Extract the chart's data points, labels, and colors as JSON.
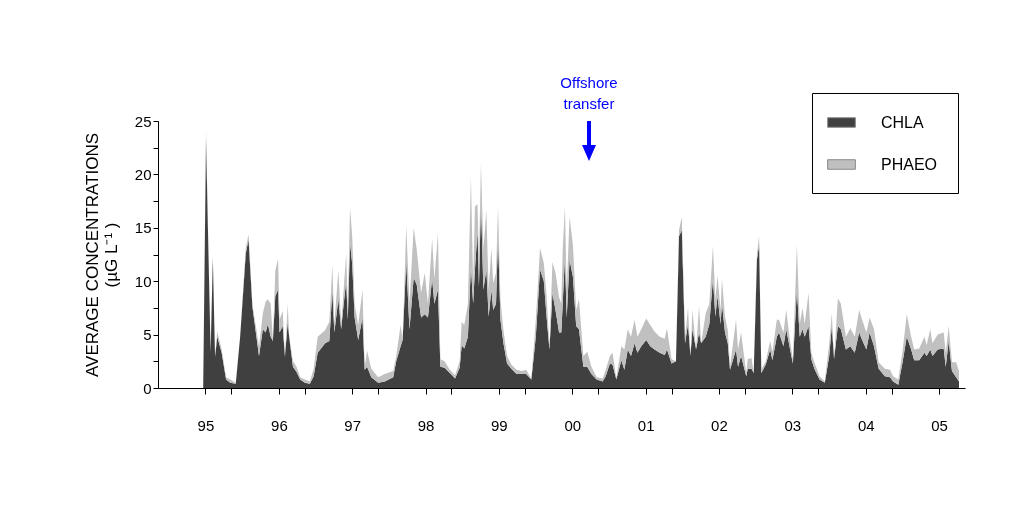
{
  "chart_data": {
    "type": "area",
    "stacked": true,
    "ylabel": "AVERAGE CONCENTRATIONS\n(µG L⁻¹ )",
    "legend": "top right",
    "xlim": [
      "1995",
      "2006"
    ],
    "xticks": [
      {
        "value": "1995-08-25",
        "label": "95"
      },
      {
        "value": "1996",
        "label": null
      },
      {
        "value": "1996-08-25",
        "label": "96"
      },
      {
        "value": "1997",
        "label": null
      },
      {
        "value": "1997-08-25",
        "label": "97"
      },
      {
        "value": "1998",
        "label": null
      },
      {
        "value": "1998-08-25",
        "label": "98"
      },
      {
        "value": "1999",
        "label": null
      },
      {
        "value": "1999-08-25",
        "label": "99"
      },
      {
        "value": "2000",
        "label": null
      },
      {
        "value": "2000-08-25",
        "label": "00"
      },
      {
        "value": "2001",
        "label": null
      },
      {
        "value": "2001-08-25",
        "label": "01"
      },
      {
        "value": "2002",
        "label": null
      },
      {
        "value": "2002-08-25",
        "label": "02"
      },
      {
        "value": "2003",
        "label": null
      },
      {
        "value": "2003-08-25",
        "label": "03"
      },
      {
        "value": "2004",
        "label": null
      },
      {
        "value": "2004-08-25",
        "label": "04"
      },
      {
        "value": "2005",
        "label": null
      },
      {
        "value": "2005-08-25",
        "label": "05"
      }
    ],
    "ylim": [
      0,
      25
    ],
    "yticks": [
      0,
      {
        "value": 2.5,
        "label": null
      },
      5,
      {
        "value": 7.5,
        "label": null
      },
      10,
      {
        "value": 12.5,
        "label": null
      },
      15,
      {
        "value": 17.5,
        "label": null
      },
      20,
      {
        "value": 22.5,
        "label": null
      },
      25
    ],
    "annotations": [
      "Offshore transfer"
    ],
    "x": [
      "1995-08-14",
      "1995-08-28",
      "1995-09-20",
      "1995-10-01",
      "1995-10-12",
      "1995-10-23",
      "1995-11-14",
      "1995-12-06",
      "1995-12-27",
      "1996-01-23",
      "1996-02-14",
      "1996-03-13",
      "1996-03-27",
      "1996-04-15",
      "1996-05-18",
      "1996-06-06",
      "1996-06-20",
      "1996-07-01",
      "1996-07-15",
      "1996-07-26",
      "1996-08-07",
      "1996-08-21",
      "1996-08-28",
      "1996-09-13",
      "1996-09-24",
      "1996-10-08",
      "1996-10-15",
      "1996-11-03",
      "1996-11-21",
      "1996-12-09",
      "1997-01-01",
      "1997-01-26",
      "1997-02-14",
      "1997-03-06",
      "1997-04-12",
      "1997-05-03",
      "1997-05-18",
      "1997-05-28",
      "1997-06-17",
      "1997-07-01",
      "1997-07-12",
      "1997-07-26",
      "1997-08-03",
      "1997-08-14",
      "1997-08-25",
      "1997-09-06",
      "1997-09-24",
      "1997-10-15",
      "1997-10-26",
      "1997-11-07",
      "1997-11-28",
      "1998-01-01",
      "1998-02-03",
      "1998-03-17",
      "1998-04-01",
      "1998-04-23",
      "1998-05-03",
      "1998-05-21",
      "1998-06-06",
      "1998-06-27",
      "1998-07-12",
      "1998-08-03",
      "1998-08-21",
      "1998-09-06",
      "1998-09-27",
      "1998-10-08",
      "1998-10-26",
      "1998-11-07",
      "1998-11-28",
      "1998-12-24",
      "1999-01-19",
      "1999-02-11",
      "1999-02-21",
      "1999-03-06",
      "1999-03-24",
      "1999-04-08",
      "1999-04-19",
      "1999-04-28",
      "1999-05-11",
      "1999-05-18",
      "1999-05-28",
      "1999-06-09",
      "1999-06-24",
      "1999-07-05",
      "1999-07-19",
      "1999-07-28",
      "1999-08-11",
      "1999-08-21",
      "1999-09-02",
      "1999-09-17",
      "1999-10-05",
      "1999-10-26",
      "1999-11-21",
      "1999-12-17",
      "2000-01-08",
      "2000-02-03",
      "2000-02-25",
      "2000-03-17",
      "2000-04-05",
      "2000-04-19",
      "2000-05-03",
      "2000-05-18",
      "2000-06-02",
      "2000-06-20",
      "2000-07-01",
      "2000-07-08",
      "2000-07-19",
      "2000-07-28",
      "2000-08-11",
      "2000-08-28",
      "2000-09-13",
      "2000-09-27",
      "2000-10-19",
      "2000-11-07",
      "2000-11-28",
      "2000-12-24",
      "2001-01-23",
      "2001-02-07",
      "2001-02-28",
      "2001-03-13",
      "2001-04-01",
      "2001-04-26",
      "2001-05-11",
      "2001-05-28",
      "2001-06-13",
      "2001-07-01",
      "2001-07-15",
      "2001-08-03",
      "2001-08-28",
      "2001-09-17",
      "2001-10-08",
      "2001-11-03",
      "2001-11-28",
      "2001-12-09",
      "2002-01-01",
      "2002-01-23",
      "2002-02-07",
      "2002-02-21",
      "2002-03-09",
      "2002-03-24",
      "2002-04-05",
      "2002-04-15",
      "2002-05-03",
      "2002-05-18",
      "2002-05-28",
      "2002-06-20",
      "2002-07-08",
      "2002-07-26",
      "2002-08-07",
      "2002-08-18",
      "2002-09-02",
      "2002-09-09",
      "2002-09-24",
      "2002-10-08",
      "2002-10-19",
      "2002-11-18",
      "2002-11-28",
      "2002-12-13",
      "2003-01-08",
      "2003-01-15",
      "2003-02-03",
      "2003-02-14",
      "2003-03-02",
      "2003-03-13",
      "2003-03-24",
      "2003-04-15",
      "2003-05-07",
      "2003-05-18",
      "2003-06-09",
      "2003-06-20",
      "2003-07-12",
      "2003-07-26",
      "2003-08-11",
      "2003-08-28",
      "2003-09-17",
      "2003-10-01",
      "2003-10-15",
      "2003-10-26",
      "2003-11-14",
      "2003-11-28",
      "2003-12-13",
      "2004-01-08",
      "2004-02-03",
      "2004-02-25",
      "2004-03-09",
      "2004-03-20",
      "2004-04-08",
      "2004-04-23",
      "2004-05-18",
      "2004-06-09",
      "2004-07-01",
      "2004-07-23",
      "2004-08-07",
      "2004-08-28",
      "2004-09-13",
      "2004-10-05",
      "2004-10-28",
      "2004-11-28",
      "2004-12-24",
      "2005-01-08",
      "2005-02-03",
      "2005-02-25",
      "2005-03-17",
      "2005-04-08",
      "2005-04-23",
      "2005-05-18",
      "2005-06-13",
      "2005-06-24",
      "2005-07-12",
      "2005-07-23",
      "2005-08-18",
      "2005-09-17",
      "2005-09-27",
      "2005-10-12",
      "2005-10-28",
      "2005-11-18",
      "2005-12-02"
    ],
    "series": [
      {
        "name": "CHLA",
        "color": "#404040",
        "values": [
          0,
          23.4,
          3.3,
          12.2,
          2.9,
          4.8,
          3.3,
          0.8,
          0.5,
          0.4,
          4.8,
          12.6,
          13.9,
          7.6,
          3.0,
          5.5,
          5.2,
          6.0,
          4.8,
          4.4,
          8.6,
          9.2,
          5.2,
          5.8,
          2.9,
          6.2,
          4.8,
          2.0,
          1.5,
          0.8,
          0.5,
          0.4,
          1.1,
          3.3,
          4.2,
          4.4,
          9.1,
          5.2,
          8.3,
          5.5,
          7.6,
          10.0,
          6.4,
          13.6,
          11.6,
          6.6,
          4.5,
          6.6,
          1.7,
          2.0,
          1.0,
          0.5,
          0.6,
          1.0,
          2.5,
          3.9,
          4.5,
          11.9,
          5.5,
          10.3,
          9.7,
          6.6,
          6.9,
          6.6,
          10.2,
          7.9,
          9.2,
          2.0,
          1.9,
          1.4,
          0.9,
          1.9,
          4.0,
          3.7,
          4.8,
          11.4,
          7.9,
          11.1,
          14.7,
          9.5,
          17.5,
          9.2,
          11.1,
          6.7,
          9.2,
          7.3,
          7.9,
          14.2,
          6.4,
          4.2,
          2.3,
          1.8,
          1.3,
          1.3,
          1.3,
          0.8,
          4.8,
          11.1,
          10.0,
          6.6,
          3.6,
          8.9,
          7.3,
          5.2,
          5.2,
          7.9,
          12.3,
          6.6,
          12.0,
          10.4,
          5.8,
          5.5,
          2.0,
          2.0,
          1.3,
          0.8,
          0.6,
          1.1,
          2.3,
          2.2,
          0.8,
          2.6,
          1.7,
          3.6,
          3.0,
          4.2,
          3.3,
          3.9,
          4.5,
          3.9,
          3.6,
          3.3,
          3.1,
          3.6,
          2.3,
          2.5,
          14.2,
          14.8,
          4.2,
          6.0,
          3.0,
          5.5,
          3.6,
          5.2,
          4.2,
          4.8,
          6.0,
          10.2,
          6.7,
          8.6,
          6.0,
          7.9,
          5.2,
          4.2,
          1.7,
          3.6,
          2.0,
          3.0,
          1.1,
          1.8,
          1.8,
          1.4,
          12.0,
          13.4,
          1.4,
          2.2,
          3.6,
          2.6,
          4.8,
          5.2,
          3.9,
          5.5,
          3.9,
          2.3,
          9.2,
          4.8,
          5.5,
          4.8,
          5.8,
          2.7,
          1.8,
          0.8,
          0.5,
          3.0,
          5.8,
          2.7,
          5.8,
          5.5,
          3.6,
          3.9,
          3.3,
          5.2,
          4.5,
          3.6,
          5.2,
          3.9,
          1.8,
          1.1,
          1.0,
          0.6,
          0.3,
          2.5,
          4.8,
          3.6,
          2.6,
          2.6,
          3.3,
          3.0,
          3.6,
          3.0,
          3.6,
          3.7,
          2.0,
          4.4,
          1.6,
          1.0,
          0.6
        ]
      },
      {
        "name": "PHAEO",
        "color": "#c0c0c0",
        "values": [
          0,
          0.8,
          0,
          0.2,
          0,
          0.5,
          0.3,
          0.2,
          0.3,
          0.1,
          0,
          0.5,
          0.5,
          0.3,
          0.9,
          1.5,
          2.9,
          2.3,
          3.1,
          0.1,
          2.4,
          2.9,
          1.2,
          1.4,
          0,
          1.7,
          0,
          0.5,
          0.5,
          0.2,
          0.3,
          0.2,
          0.7,
          1.5,
          1.2,
          1.8,
          2.4,
          0.8,
          2.7,
          0.5,
          1.3,
          2.6,
          0.9,
          3.3,
          2.6,
          1.3,
          1.4,
          2.6,
          0.3,
          1.5,
          0.8,
          0.5,
          0.7,
          0.6,
          0.5,
          2.0,
          0,
          3.3,
          2.4,
          4.7,
          3.3,
          2.3,
          3.9,
          1.3,
          3.8,
          2.3,
          5.3,
          0.7,
          0.6,
          0.3,
          0.3,
          0.6,
          2.2,
          2.2,
          3.1,
          8.4,
          1.9,
          5.9,
          2.5,
          2.5,
          3.6,
          3.8,
          5.6,
          2.5,
          3.9,
          2.5,
          2.9,
          2.8,
          1.9,
          1.2,
          0.7,
          0.4,
          0.4,
          0.3,
          0.4,
          0.1,
          1.6,
          2.0,
          1.7,
          2.0,
          0.3,
          2.9,
          3.5,
          3.3,
          2.7,
          5.1,
          4.7,
          2.6,
          4.0,
          3.0,
          1.5,
          2.8,
          1.0,
          1.4,
          0.7,
          0.2,
          0.3,
          0.6,
          0.7,
          1.1,
          0.1,
          1.3,
          1.9,
          1.9,
          1.8,
          2.2,
          1.5,
          1.6,
          2.0,
          2.0,
          1.7,
          1.5,
          1.5,
          2.0,
          0.4,
          0,
          0.6,
          1.2,
          0.6,
          1.5,
          0,
          1.8,
          0,
          2.5,
          0,
          2.2,
          1.9,
          3.1,
          1.6,
          1.9,
          1.3,
          2.3,
          1.5,
          1.2,
          0.3,
          2.8,
          1.6,
          2.2,
          0.3,
          0.9,
          1.0,
          0,
          0.6,
          0.8,
          0.3,
          0.3,
          0.8,
          0.8,
          1.6,
          1.2,
          1.3,
          1.8,
          0.9,
          0.4,
          4.2,
          1.2,
          2.0,
          1.2,
          3.1,
          0.6,
          0.6,
          0.3,
          0.1,
          1.2,
          1.2,
          0,
          2.6,
          2.4,
          1.2,
          1.7,
          1.5,
          2.1,
          1.9,
          1.6,
          1.4,
          1.6,
          0.6,
          0.7,
          0.7,
          0.5,
          0.5,
          1.1,
          2.1,
          1.2,
          1.0,
          1.1,
          1.5,
          1.0,
          1.9,
          1.2,
          1.4,
          1.5,
          1.3,
          1.4,
          0.8,
          1.4,
          1.0
        ]
      }
    ]
  }
}
